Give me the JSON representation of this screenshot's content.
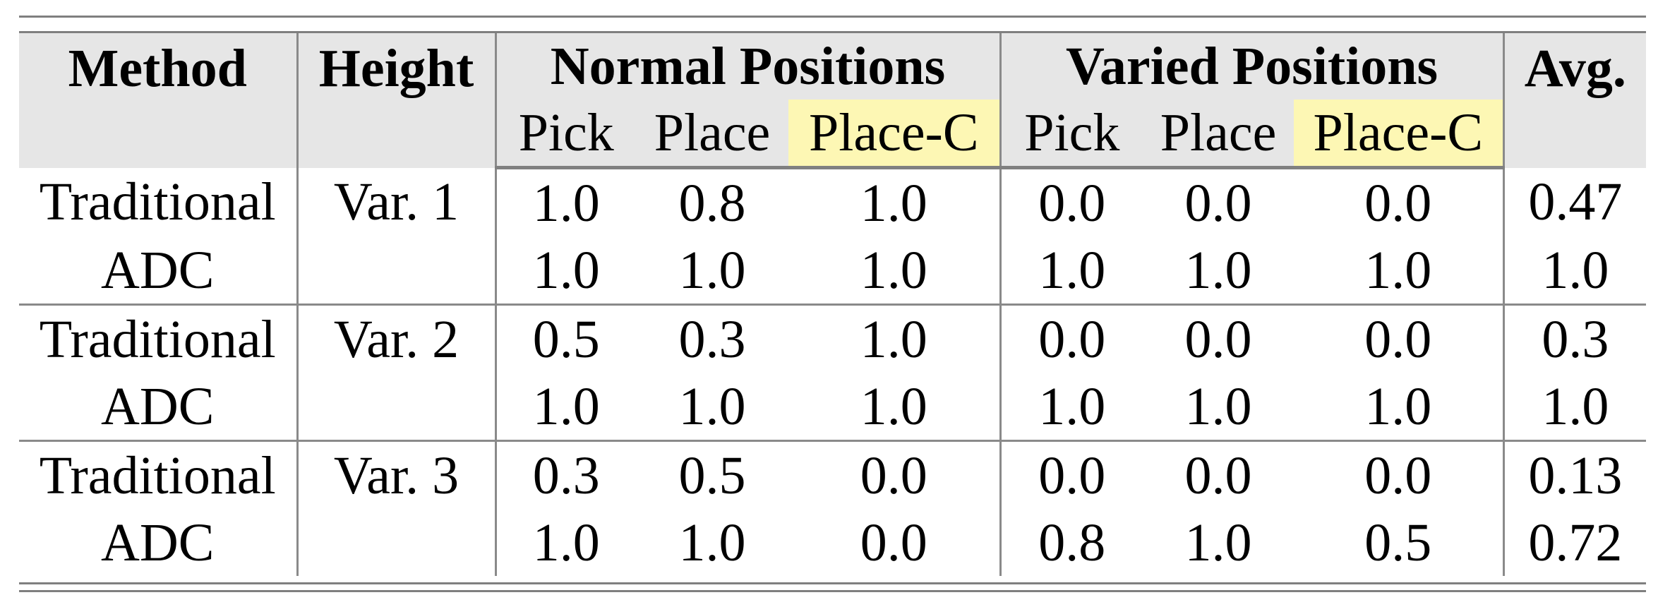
{
  "header": {
    "method": "Method",
    "height": "Height",
    "normal_positions": "Normal Positions",
    "varied_positions": "Varied Positions",
    "avg": "Avg.",
    "sub": [
      "Pick",
      "Place",
      "Place-C",
      "Pick",
      "Place",
      "Place-C"
    ]
  },
  "highlight_color": "#fdf7b4",
  "groups": [
    {
      "height": "Var. 1",
      "rows": [
        {
          "method": "Traditional",
          "values": [
            "1.0",
            "0.8",
            "1.0",
            "0.0",
            "0.0",
            "0.0"
          ],
          "avg": "0.47"
        },
        {
          "method": "ADC",
          "values": [
            "1.0",
            "1.0",
            "1.0",
            "1.0",
            "1.0",
            "1.0"
          ],
          "avg": "1.0"
        }
      ]
    },
    {
      "height": "Var. 2",
      "rows": [
        {
          "method": "Traditional",
          "values": [
            "0.5",
            "0.3",
            "1.0",
            "0.0",
            "0.0",
            "0.0"
          ],
          "avg": "0.3"
        },
        {
          "method": "ADC",
          "values": [
            "1.0",
            "1.0",
            "1.0",
            "1.0",
            "1.0",
            "1.0"
          ],
          "avg": "1.0"
        }
      ]
    },
    {
      "height": "Var. 3",
      "rows": [
        {
          "method": "Traditional",
          "values": [
            "0.3",
            "0.5",
            "0.0",
            "0.0",
            "0.0",
            "0.0"
          ],
          "avg": "0.13"
        },
        {
          "method": "ADC",
          "values": [
            "1.0",
            "1.0",
            "0.0",
            "0.8",
            "1.0",
            "0.5"
          ],
          "avg": "0.72"
        }
      ]
    }
  ]
}
